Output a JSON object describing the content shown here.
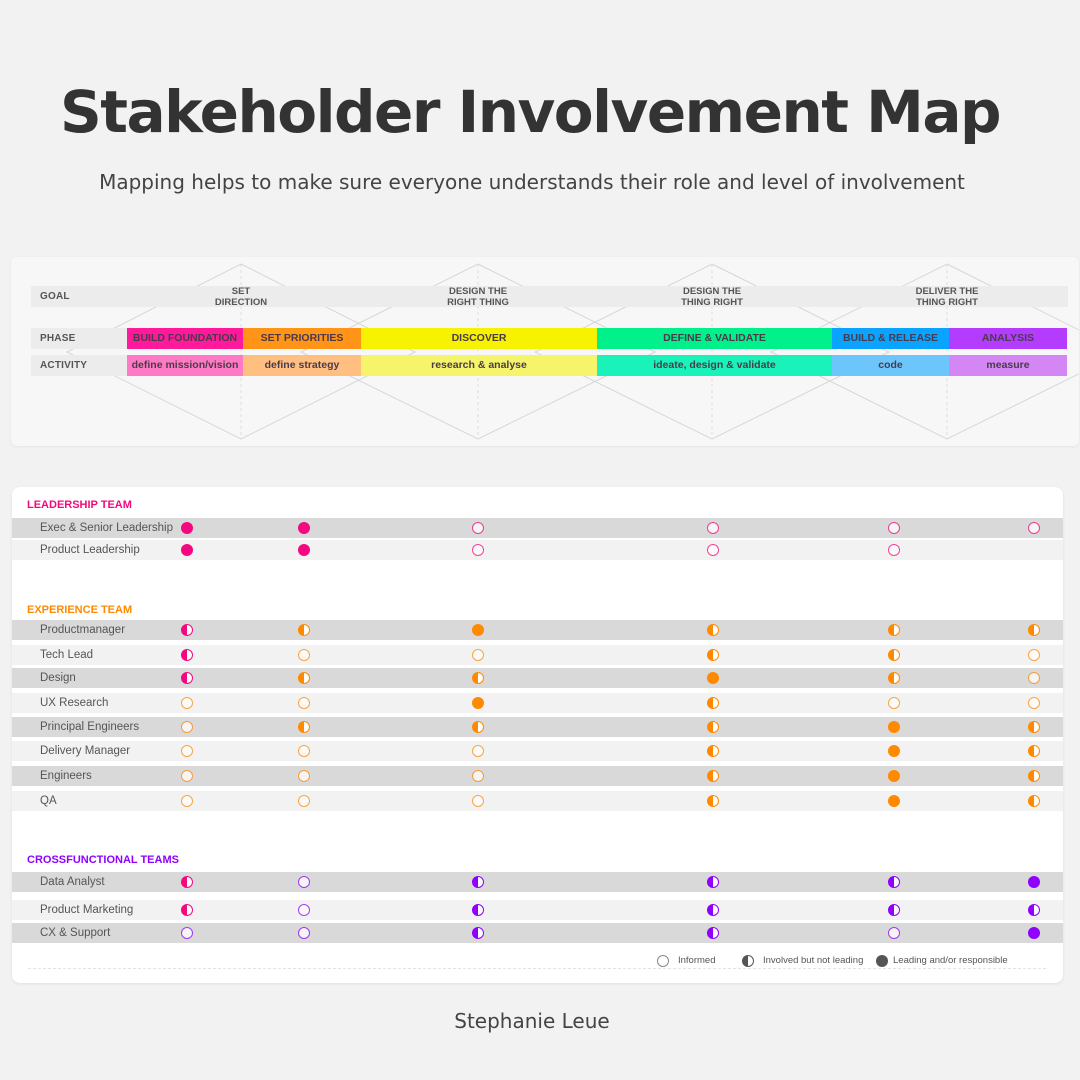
{
  "header": {
    "title": "Stakeholder Involvement Map",
    "subtitle": "Mapping helps to make sure everyone understands their role and level of involvement"
  },
  "phase_map": {
    "row_labels": {
      "goal": "GOAL",
      "phase": "PHASE",
      "activity": "ACTIVITY"
    },
    "goals": [
      {
        "line1": "SET",
        "line2": "DIRECTION"
      },
      {
        "line1": "DESIGN THE",
        "line2": "RIGHT THING"
      },
      {
        "line1": "DESIGN THE",
        "line2": "THING RIGHT"
      },
      {
        "line1": "DELIVER THE",
        "line2": "THING RIGHT"
      }
    ],
    "phases": [
      {
        "label": "BUILD FOUNDATION",
        "activity": "define mission/vision",
        "color": "#ff1a9c",
        "activity_color": "#ff7ac4"
      },
      {
        "label": "SET PRIORITIES",
        "activity": "define strategy",
        "color": "#ff9419",
        "activity_color": "#ffbf80"
      },
      {
        "label": "DISCOVER",
        "activity": "research & analyse",
        "color": "#f7f200",
        "activity_color": "#f5f46a"
      },
      {
        "label": "DEFINE & VALIDATE",
        "activity": "ideate, design & validate",
        "color": "#00f08c",
        "activity_color": "#19f2b8"
      },
      {
        "label": "BUILD & RELEASE",
        "activity": "code",
        "color": "#0aa3ff",
        "activity_color": "#6cc6fb"
      },
      {
        "label": "ANALYSIS",
        "activity": "measure",
        "color": "#b43cff",
        "activity_color": "#d586f5"
      }
    ]
  },
  "legend": {
    "informed": "Informed",
    "involved": "Involved but not leading",
    "leading": "Leading and/or responsible"
  },
  "colors": {
    "leadership": "#f5087f",
    "experience": "#ff8a00",
    "crossfunctional": "#8f00ff",
    "legend": "#555555"
  },
  "teams": [
    {
      "title": "LEADERSHIP TEAM",
      "color_key": "leadership",
      "rows": [
        {
          "name": "Exec & Senior Leadership",
          "levels": [
            "L:leadership",
            "L:leadership",
            "I:leadership",
            "I:leadership",
            "I:leadership",
            "I:leadership"
          ]
        },
        {
          "name": "Product Leadership",
          "levels": [
            "L:leadership",
            "L:leadership",
            "I:leadership",
            "I:leadership",
            "I:leadership",
            ""
          ]
        }
      ]
    },
    {
      "title": "EXPERIENCE TEAM",
      "color_key": "experience",
      "rows": [
        {
          "name": "Productmanager",
          "levels": [
            "H:leadership",
            "H:experience",
            "L:experience",
            "H:experience",
            "H:experience",
            "H:experience"
          ]
        },
        {
          "name": "Tech Lead",
          "levels": [
            "H:leadership",
            "I:experience",
            "I:experience",
            "H:experience",
            "H:experience",
            "I:experience"
          ]
        },
        {
          "name": "Design",
          "levels": [
            "H:leadership",
            "H:experience",
            "H:experience",
            "L:experience",
            "H:experience",
            "I:experience"
          ]
        },
        {
          "name": "UX Research",
          "levels": [
            "I:experience",
            "I:experience",
            "L:experience",
            "H:experience",
            "I:experience",
            "I:experience"
          ]
        },
        {
          "name": "Principal Engineers",
          "levels": [
            "I:experience",
            "H:experience",
            "H:experience",
            "H:experience",
            "L:experience",
            "H:experience"
          ]
        },
        {
          "name": "Delivery Manager",
          "levels": [
            "I:experience",
            "I:experience",
            "I:experience",
            "H:experience",
            "L:experience",
            "H:experience"
          ]
        },
        {
          "name": "Engineers",
          "levels": [
            "I:experience",
            "I:experience",
            "I:experience",
            "H:experience",
            "L:experience",
            "H:experience"
          ]
        },
        {
          "name": "QA",
          "levels": [
            "I:experience",
            "I:experience",
            "I:experience",
            "H:experience",
            "L:experience",
            "H:experience"
          ]
        }
      ]
    },
    {
      "title": "CROSSFUNCTIONAL TEAMS",
      "color_key": "crossfunctional",
      "rows": [
        {
          "name": "Data Analyst",
          "levels": [
            "H:leadership",
            "I:crossfunctional",
            "H:crossfunctional",
            "H:crossfunctional",
            "H:crossfunctional",
            "L:crossfunctional"
          ]
        },
        {
          "name": "Product Marketing",
          "levels": [
            "H:leadership",
            "I:crossfunctional",
            "H:crossfunctional",
            "H:crossfunctional",
            "H:crossfunctional",
            "H:crossfunctional"
          ]
        },
        {
          "name": "CX & Support",
          "levels": [
            "I:crossfunctional",
            "I:crossfunctional",
            "H:crossfunctional",
            "H:crossfunctional",
            "I:crossfunctional",
            "L:crossfunctional"
          ]
        }
      ]
    }
  ],
  "footer": {
    "author": "Stephanie Leue"
  }
}
